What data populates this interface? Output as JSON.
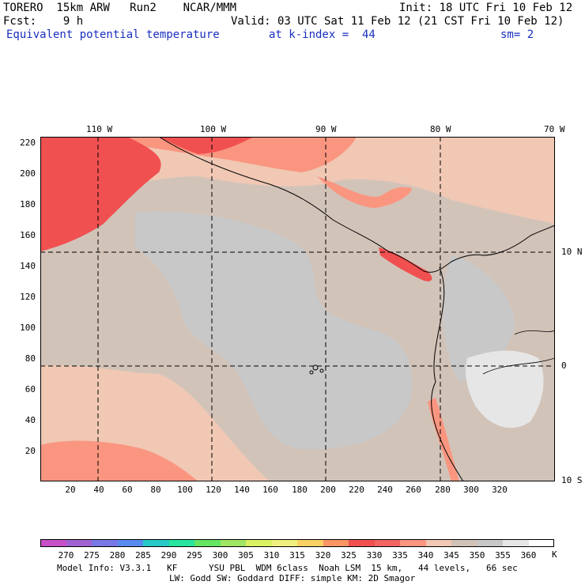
{
  "header": {
    "line1_left": "TORERO  15km ARW   Run2    NCAR/MMM",
    "line1_right": "Init: 18 UTC Fri 10 Feb 12",
    "line2_left": "Fcst:    9 h",
    "line2_right": "Valid: 03 UTC Sat 11 Feb 12 (21 CST Fri 10 Feb 12)",
    "field_name": "Equivalent potential temperature",
    "level": "at k-index =  44",
    "smoothing": "sm= 2"
  },
  "axes": {
    "top_labels": [
      "110 W",
      "100 W",
      "90 W",
      "80 W",
      "70 W"
    ],
    "right_labels": [
      "10 N",
      "0",
      "10 S"
    ],
    "left_ticks": [
      "220",
      "200",
      "180",
      "160",
      "140",
      "120",
      "100",
      "80",
      "60",
      "40",
      "20"
    ],
    "bottom_ticks": [
      "20",
      "40",
      "60",
      "80",
      "100",
      "120",
      "140",
      "160",
      "180",
      "200",
      "220",
      "240",
      "260",
      "280",
      "300",
      "320"
    ]
  },
  "colorbar": {
    "colors": [
      "#c850c8",
      "#a064d2",
      "#7878e6",
      "#5a8cf0",
      "#28c8c8",
      "#28e6a0",
      "#64e664",
      "#a0e664",
      "#dcf064",
      "#f0f080",
      "#fad264",
      "#fa9664",
      "#f05050",
      "#f06464",
      "#fa9680",
      "#f0c8b4",
      "#d2c3b9",
      "#c8c8c8",
      "#e6e6e6",
      "#ffffff"
    ],
    "labels": [
      "270",
      "275",
      "280",
      "285",
      "290",
      "295",
      "300",
      "305",
      "310",
      "315",
      "320",
      "325",
      "330",
      "335",
      "340",
      "345",
      "350",
      "355",
      "360"
    ],
    "unit": "K"
  },
  "footer": {
    "line1": "Model Info: V3.3.1   KF      YSU PBL  WDM 6class  Noah LSM  15 km,   44 levels,   66 sec",
    "line2": "LW: Godd SW: Goddard DIFF: simple KM: 2D Smagor"
  }
}
